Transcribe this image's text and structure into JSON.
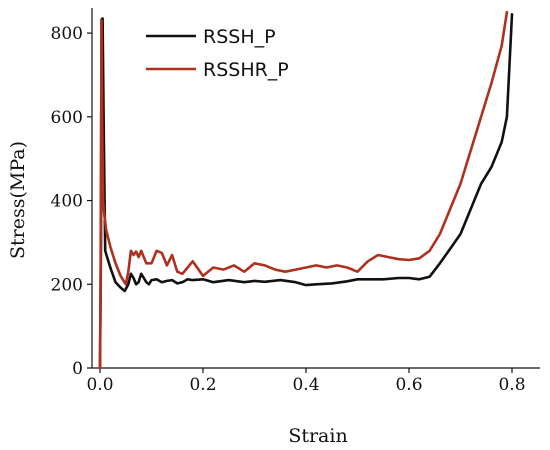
{
  "chart_data": {
    "type": "line",
    "title": "",
    "xlabel": "Strain",
    "ylabel": "Stress(MPa)",
    "xlim": [
      0,
      0.8
    ],
    "ylim": [
      0,
      860
    ],
    "xticks": [
      0.0,
      0.2,
      0.4,
      0.6,
      0.8
    ],
    "xtick_labels": [
      "0.0",
      "0.2",
      "0.4",
      "0.6",
      "0.8"
    ],
    "yticks": [
      0,
      200,
      400,
      600,
      800
    ],
    "ytick_labels": [
      "0",
      "200",
      "400",
      "600",
      "800"
    ],
    "grid": false,
    "legend_position": "top-left",
    "series": [
      {
        "name": "RSSH_P",
        "color": "#111111",
        "x": [
          0.0,
          0.002,
          0.003,
          0.005,
          0.007,
          0.01,
          0.02,
          0.03,
          0.04,
          0.048,
          0.055,
          0.06,
          0.065,
          0.07,
          0.075,
          0.08,
          0.085,
          0.09,
          0.095,
          0.1,
          0.11,
          0.12,
          0.13,
          0.14,
          0.15,
          0.16,
          0.17,
          0.18,
          0.2,
          0.22,
          0.25,
          0.28,
          0.3,
          0.32,
          0.35,
          0.38,
          0.4,
          0.42,
          0.45,
          0.48,
          0.5,
          0.52,
          0.55,
          0.58,
          0.6,
          0.62,
          0.64,
          0.66,
          0.68,
          0.7,
          0.72,
          0.74,
          0.76,
          0.78,
          0.79,
          0.795,
          0.8
        ],
        "y": [
          0,
          300,
          832,
          835,
          600,
          280,
          240,
          205,
          192,
          184,
          200,
          225,
          215,
          200,
          205,
          225,
          215,
          205,
          200,
          210,
          212,
          205,
          208,
          210,
          202,
          205,
          212,
          210,
          212,
          205,
          210,
          205,
          208,
          206,
          210,
          205,
          198,
          200,
          202,
          207,
          212,
          212,
          212,
          215,
          215,
          212,
          218,
          250,
          285,
          320,
          380,
          440,
          480,
          540,
          600,
          720,
          845
        ]
      },
      {
        "name": "RSSHR_P",
        "color": "#b03020",
        "x": [
          0.0,
          0.001,
          0.002,
          0.003,
          0.004,
          0.006,
          0.008,
          0.012,
          0.02,
          0.03,
          0.04,
          0.05,
          0.055,
          0.06,
          0.065,
          0.07,
          0.075,
          0.08,
          0.09,
          0.1,
          0.11,
          0.12,
          0.13,
          0.14,
          0.15,
          0.16,
          0.18,
          0.2,
          0.22,
          0.24,
          0.26,
          0.28,
          0.3,
          0.32,
          0.34,
          0.36,
          0.38,
          0.4,
          0.42,
          0.44,
          0.46,
          0.48,
          0.5,
          0.52,
          0.54,
          0.56,
          0.58,
          0.6,
          0.62,
          0.64,
          0.66,
          0.68,
          0.7,
          0.72,
          0.74,
          0.76,
          0.78,
          0.79
        ],
        "y": [
          0,
          180,
          500,
          830,
          600,
          400,
          370,
          330,
          290,
          250,
          220,
          200,
          230,
          280,
          270,
          278,
          265,
          280,
          250,
          250,
          280,
          275,
          245,
          270,
          230,
          225,
          255,
          220,
          240,
          235,
          245,
          230,
          250,
          245,
          235,
          230,
          235,
          240,
          245,
          240,
          245,
          240,
          230,
          255,
          270,
          265,
          260,
          258,
          262,
          280,
          320,
          380,
          440,
          520,
          600,
          680,
          770,
          850
        ]
      }
    ]
  }
}
